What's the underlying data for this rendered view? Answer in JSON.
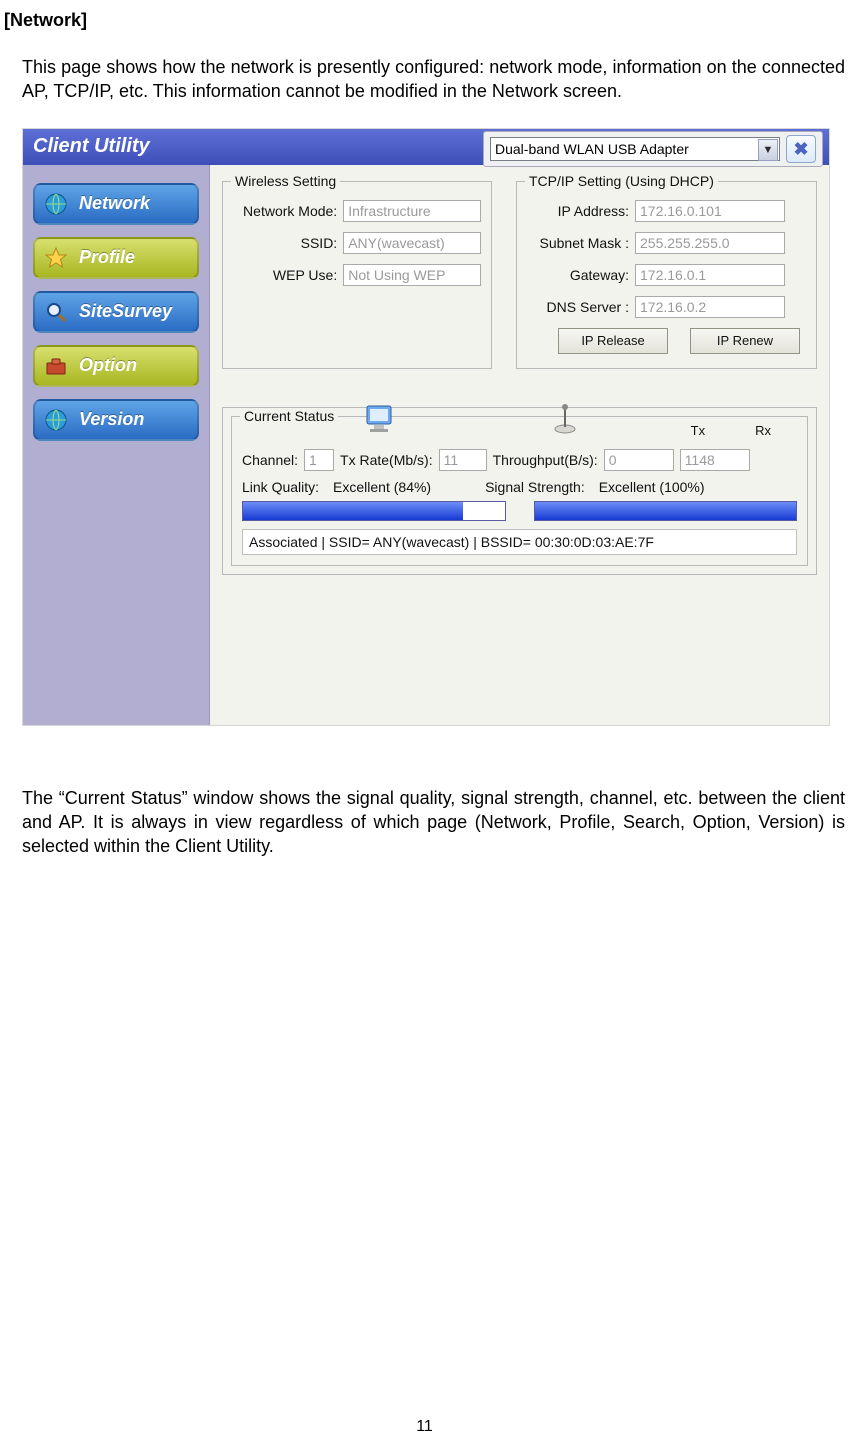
{
  "doc": {
    "heading": "[Network]",
    "para1": "This page shows how the network is presently configured: network mode, information on the connected AP, TCP/IP, etc. This information cannot be modified in the Network screen.",
    "para2": "The “Current Status” window shows the signal quality, signal strength, channel, etc. between the client and AP. It is always in view regardless of which page (Network, Profile, Search, Option, Version) is selected within the Client Utility.",
    "page_number": "11"
  },
  "app": {
    "title": "Client Utility",
    "adapter_selected": "Dual-band WLAN USB Adapter",
    "colors": {
      "titlebar_grad_top": "#5e70d6",
      "titlebar_grad_bot": "#3e4fb8",
      "sidebar_bg": "#b2aed1",
      "panel_bg": "#f3f3ee",
      "bar_fill_top": "#6d8df7",
      "bar_fill_bot": "#173bd4"
    }
  },
  "sidebar": {
    "items": [
      {
        "label": "Network",
        "style": "blue"
      },
      {
        "label": "Profile",
        "style": "yellow"
      },
      {
        "label": "SiteSurvey",
        "style": "blue"
      },
      {
        "label": "Option",
        "style": "yellow"
      },
      {
        "label": "Version",
        "style": "blue"
      }
    ]
  },
  "wireless": {
    "legend": "Wireless Setting",
    "mode_label": "Network Mode:",
    "mode_value": "Infrastructure",
    "ssid_label": "SSID:",
    "ssid_value": "ANY(wavecast)",
    "wep_label": "WEP Use:",
    "wep_value": "Not Using WEP"
  },
  "tcpip": {
    "legend": "TCP/IP Setting  (Using DHCP)",
    "ip_label": "IP Address:",
    "ip_value": "172.16.0.101",
    "mask_label": "Subnet Mask :",
    "mask_value": "255.255.255.0",
    "gw_label": "Gateway:",
    "gw_value": "172.16.0.1",
    "dns_label": "DNS Server :",
    "dns_value": "172.16.0.2",
    "release": "IP Release",
    "renew": "IP Renew"
  },
  "status": {
    "legend": "Current Status",
    "channel_label": "Channel:",
    "channel_value": "1",
    "txrate_label": "Tx Rate(Mb/s):",
    "txrate_value": "11",
    "throughput_label": "Throughput(B/s):",
    "tx_header": "Tx",
    "rx_header": "Rx",
    "tx_value": "0",
    "rx_value": "1148",
    "link_label": "Link Quality:",
    "link_value": "Excellent (84%)",
    "link_pct": 84,
    "signal_label": "Signal Strength:",
    "signal_value": "Excellent (100%)",
    "signal_pct": 100,
    "assoc": "Associated | SSID= ANY(wavecast) | BSSID= 00:30:0D:03:AE:7F"
  }
}
